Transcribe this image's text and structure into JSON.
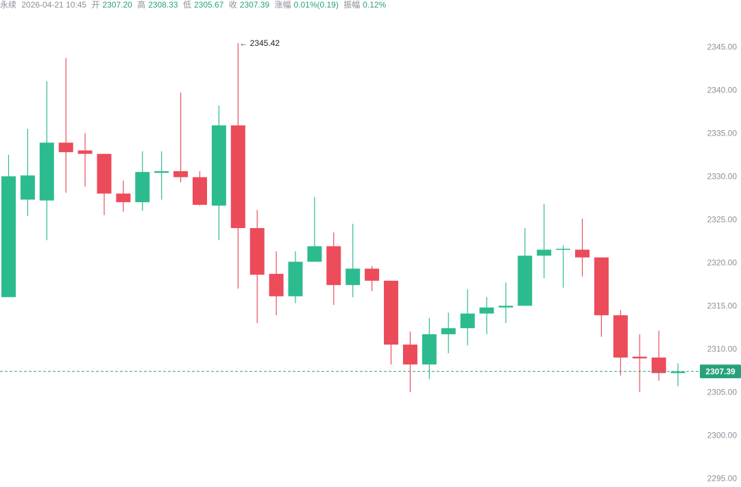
{
  "header": {
    "name": "永续",
    "datetime": "2026-04-21 10:45",
    "open_label": "开",
    "open_value": "2307.20",
    "high_label": "高",
    "high_value": "2308.33",
    "low_label": "低",
    "low_value": "2305.67",
    "close_label": "收",
    "close_value": "2307.39",
    "change_label": "涨幅",
    "change_value": "0.01%(0.19)",
    "amplitude_label": "振幅",
    "amplitude_value": "0.12%"
  },
  "colors": {
    "up": "#2cbb8f",
    "down": "#ec4b5a",
    "last_price": "#26a17b"
  },
  "chart_data": {
    "type": "candlestick",
    "title": "",
    "xlabel": "",
    "ylabel": "",
    "ylim": [
      2294,
      2349
    ],
    "y_ticks": [
      "2345.00",
      "2340.00",
      "2335.00",
      "2330.00",
      "2325.00",
      "2320.00",
      "2315.00",
      "2310.00",
      "2305.00",
      "2300.00",
      "2295.00"
    ],
    "max_label": "← 2345.42",
    "last_price": 2307.39,
    "last_price_label": "2307.39",
    "candles": [
      {
        "o": 2316.0,
        "h": 2332.5,
        "l": 2316.0,
        "c": 2330.0
      },
      {
        "o": 2327.3,
        "h": 2335.5,
        "l": 2325.4,
        "c": 2330.1
      },
      {
        "o": 2327.2,
        "h": 2341.0,
        "l": 2322.6,
        "c": 2333.9
      },
      {
        "o": 2333.9,
        "h": 2343.7,
        "l": 2328.1,
        "c": 2332.8
      },
      {
        "o": 2333.0,
        "h": 2335.0,
        "l": 2328.8,
        "c": 2332.6
      },
      {
        "o": 2332.6,
        "h": 2332.6,
        "l": 2325.5,
        "c": 2328.0
      },
      {
        "o": 2328.0,
        "h": 2329.5,
        "l": 2325.9,
        "c": 2327.0
      },
      {
        "o": 2327.0,
        "h": 2332.9,
        "l": 2326.0,
        "c": 2330.5
      },
      {
        "o": 2330.4,
        "h": 2332.9,
        "l": 2327.3,
        "c": 2330.6
      },
      {
        "o": 2330.6,
        "h": 2339.7,
        "l": 2329.3,
        "c": 2329.9
      },
      {
        "o": 2329.9,
        "h": 2330.6,
        "l": 2326.6,
        "c": 2326.7
      },
      {
        "o": 2326.6,
        "h": 2338.2,
        "l": 2322.6,
        "c": 2335.9
      },
      {
        "o": 2335.9,
        "h": 2345.42,
        "l": 2317.0,
        "c": 2324.0
      },
      {
        "o": 2324.0,
        "h": 2326.1,
        "l": 2313.0,
        "c": 2318.6
      },
      {
        "o": 2318.7,
        "h": 2321.3,
        "l": 2313.9,
        "c": 2316.1
      },
      {
        "o": 2316.1,
        "h": 2321.3,
        "l": 2315.3,
        "c": 2320.1
      },
      {
        "o": 2320.1,
        "h": 2327.6,
        "l": 2320.1,
        "c": 2321.9
      },
      {
        "o": 2321.9,
        "h": 2323.5,
        "l": 2315.1,
        "c": 2317.4
      },
      {
        "o": 2317.4,
        "h": 2324.5,
        "l": 2316.0,
        "c": 2319.3
      },
      {
        "o": 2319.3,
        "h": 2319.6,
        "l": 2316.7,
        "c": 2317.9
      },
      {
        "o": 2317.9,
        "h": 2317.9,
        "l": 2308.2,
        "c": 2310.5
      },
      {
        "o": 2310.5,
        "h": 2312.0,
        "l": 2305.0,
        "c": 2308.2
      },
      {
        "o": 2308.2,
        "h": 2313.6,
        "l": 2306.5,
        "c": 2311.7
      },
      {
        "o": 2311.7,
        "h": 2314.2,
        "l": 2309.5,
        "c": 2312.4
      },
      {
        "o": 2312.4,
        "h": 2316.9,
        "l": 2310.4,
        "c": 2314.1
      },
      {
        "o": 2314.1,
        "h": 2316.0,
        "l": 2311.7,
        "c": 2314.8
      },
      {
        "o": 2314.8,
        "h": 2317.7,
        "l": 2313.0,
        "c": 2315.0
      },
      {
        "o": 2315.0,
        "h": 2324.0,
        "l": 2315.0,
        "c": 2320.8
      },
      {
        "o": 2320.8,
        "h": 2326.8,
        "l": 2318.2,
        "c": 2321.5
      },
      {
        "o": 2321.5,
        "h": 2322.0,
        "l": 2317.1,
        "c": 2321.6
      },
      {
        "o": 2321.5,
        "h": 2325.1,
        "l": 2318.4,
        "c": 2320.6
      },
      {
        "o": 2320.6,
        "h": 2320.6,
        "l": 2311.4,
        "c": 2313.9
      },
      {
        "o": 2313.9,
        "h": 2314.5,
        "l": 2306.9,
        "c": 2309.0
      },
      {
        "o": 2309.1,
        "h": 2311.7,
        "l": 2305.0,
        "c": 2308.9
      },
      {
        "o": 2309.0,
        "h": 2312.1,
        "l": 2306.3,
        "c": 2307.2
      },
      {
        "o": 2307.2,
        "h": 2308.33,
        "l": 2305.67,
        "c": 2307.39
      }
    ]
  }
}
